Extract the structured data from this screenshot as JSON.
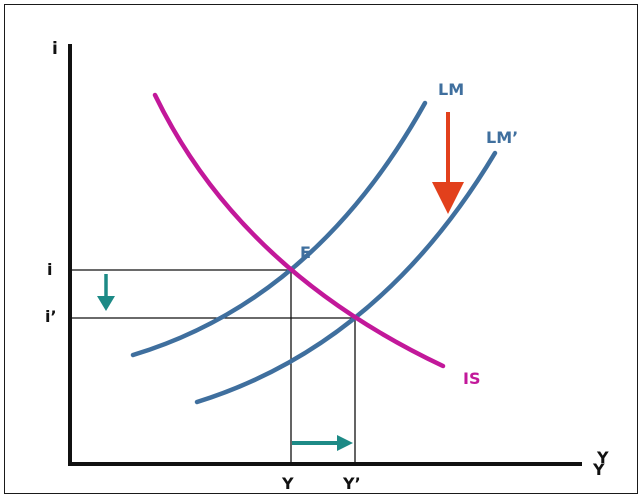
{
  "axes": {
    "y_axis_label": "i",
    "x_axis_label": "Y",
    "x_axis_label_secondary": "Y"
  },
  "curves": {
    "lm_label": "LM",
    "lm_prime_label": "LM’",
    "is_label": "IS"
  },
  "equilibrium": {
    "point_label": "E"
  },
  "levels": {
    "i_label": "i",
    "i_prime_label": "i’",
    "y_label": "Y",
    "y_prime_label": "Y’"
  },
  "colors": {
    "lm": "#3f6f9e",
    "is": "#c2189a",
    "shift_arrow": "#e2401c",
    "small_arrows": "#1d8a86",
    "axis": "#111111"
  }
}
